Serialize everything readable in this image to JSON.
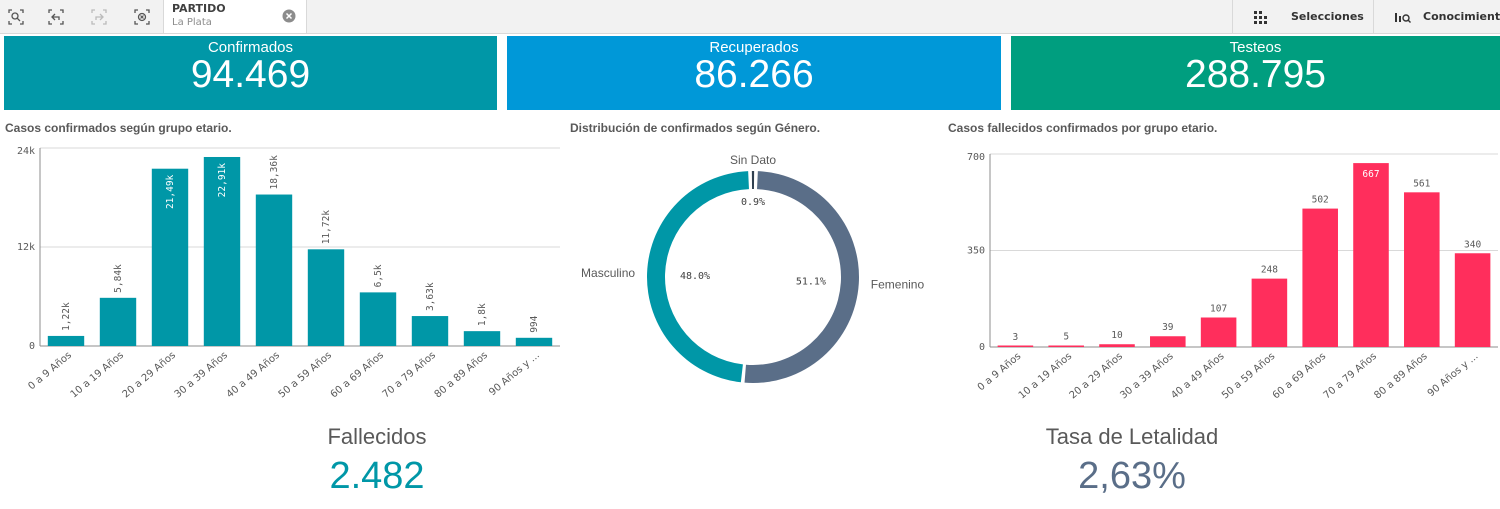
{
  "toolbar": {
    "selection": {
      "field": "PARTIDO",
      "value": "La Plata"
    },
    "selecciones_label": "Selecciones",
    "conocimiento_label": "Conocimiento"
  },
  "kpis": [
    {
      "label": "Confirmados",
      "value": "94.469",
      "color": "#0097a7"
    },
    {
      "label": "Recuperados",
      "value": "86.266",
      "color": "#0098d8"
    },
    {
      "label": "Testeos",
      "value": "288.795",
      "color": "#009e7f"
    }
  ],
  "chart_data": [
    {
      "type": "bar",
      "title": "Casos confirmados según grupo etario.",
      "categories": [
        "0 a 9 Años",
        "10 a 19 Años",
        "20 a 29 Años",
        "30 a 39 Años",
        "40 a 49 Años",
        "50 a 59 Años",
        "60 a 69 Años",
        "70 a 79 Años",
        "80 a 89 Años",
        "90 Años y ..."
      ],
      "values": [
        1220,
        5840,
        21490,
        22910,
        18360,
        11720,
        6500,
        3630,
        1800,
        994
      ],
      "value_labels": [
        "1,22k",
        "5,84k",
        "21,49k",
        "22,91k",
        "18,36k",
        "11,72k",
        "6,5k",
        "3,63k",
        "1,8k",
        "994"
      ],
      "ylim": [
        0,
        24000
      ],
      "yticks": [
        0,
        12000,
        24000
      ],
      "ytick_labels": [
        "0",
        "12k",
        "24k"
      ],
      "grid": true,
      "color": "#0097a7"
    },
    {
      "type": "pie",
      "title": "Distribución de confirmados según Género.",
      "labels": [
        "Femenino",
        "Masculino",
        "Sin Dato"
      ],
      "values": [
        51.1,
        48.0,
        0.9
      ],
      "value_labels": [
        "51.1%",
        "48.0%",
        "0.9%"
      ],
      "colors": [
        "#5a6e88",
        "#0097a7",
        "#2f3f4f"
      ]
    },
    {
      "type": "bar",
      "title": "Casos fallecidos confirmados por grupo etario.",
      "categories": [
        "0 a 9 Años",
        "10 a 19 Años",
        "20 a 29 Años",
        "30 a 39 Años",
        "40 a 49 Años",
        "50 a 59 Años",
        "60 a 69 Años",
        "70 a 79 Años",
        "80 a 89 Años",
        "90 Años y ..."
      ],
      "values": [
        3,
        5,
        10,
        39,
        107,
        248,
        502,
        667,
        561,
        340
      ],
      "value_labels": [
        "3",
        "5",
        "10",
        "39",
        "107",
        "248",
        "502",
        "667",
        "561",
        "340"
      ],
      "ylim": [
        0,
        700
      ],
      "yticks": [
        0,
        350,
        700
      ],
      "ytick_labels": [
        "0",
        "350",
        "700"
      ],
      "grid": true,
      "color": "#ff2e5c"
    }
  ],
  "fallecidos": {
    "label": "Fallecidos",
    "value": "2.482",
    "color": "#0097a7"
  },
  "letalidad": {
    "label": "Tasa de Letalidad",
    "value": "2,63%",
    "color": "#5a6e88"
  }
}
